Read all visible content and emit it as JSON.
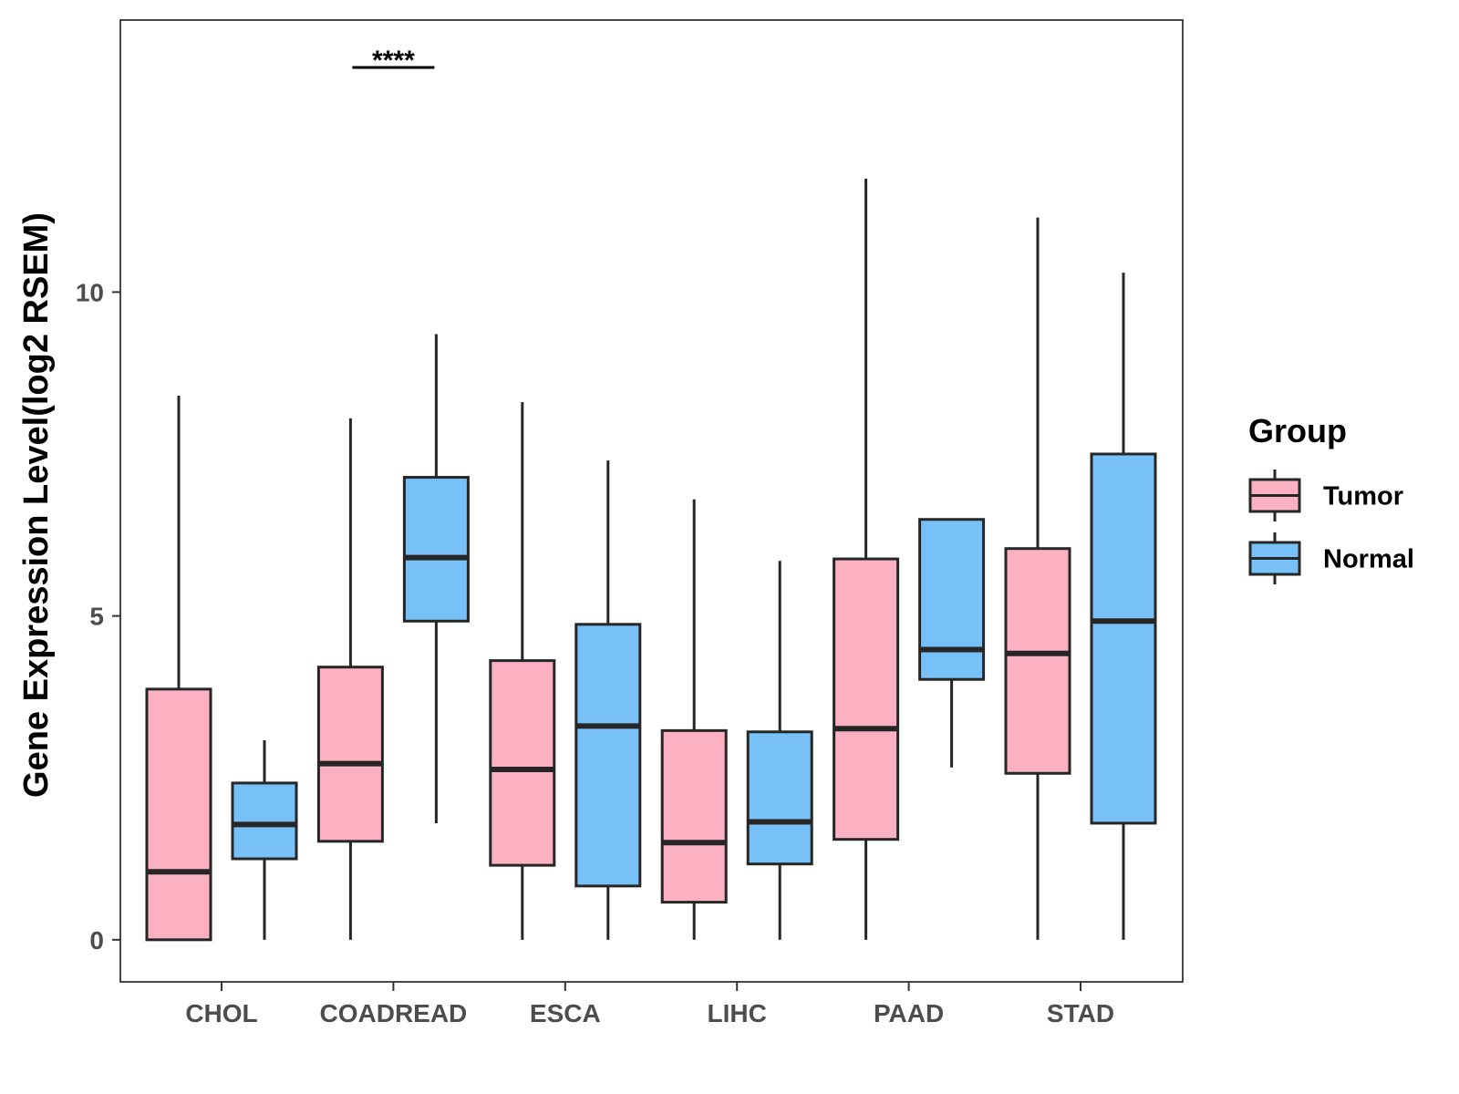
{
  "chart_data": {
    "type": "boxplot",
    "title": "",
    "xlabel": "",
    "ylabel": "Gene Expression Level(log2 RSEM)",
    "ylim": [
      -0.65,
      14.2
    ],
    "yticks": [
      0,
      5,
      10
    ],
    "categories": [
      "CHOL",
      "COADREAD",
      "ESCA",
      "LIHC",
      "PAAD",
      "STAD"
    ],
    "legend": {
      "title": "Group",
      "position": "right"
    },
    "series": [
      {
        "name": "Tumor",
        "color": "#FBB1C2",
        "boxes": [
          {
            "min": 0.0,
            "q1": 0.0,
            "median": 1.05,
            "q3": 3.87,
            "max": 8.4
          },
          {
            "min": 0.0,
            "q1": 1.52,
            "median": 2.72,
            "q3": 4.21,
            "max": 8.05
          },
          {
            "min": 0.0,
            "q1": 1.15,
            "median": 2.63,
            "q3": 4.31,
            "max": 8.3
          },
          {
            "min": 0.0,
            "q1": 0.58,
            "median": 1.5,
            "q3": 3.23,
            "max": 6.8
          },
          {
            "min": 0.0,
            "q1": 1.55,
            "median": 3.26,
            "q3": 5.88,
            "max": 11.75
          },
          {
            "min": 0.0,
            "q1": 2.57,
            "median": 4.42,
            "q3": 6.04,
            "max": 11.15
          }
        ]
      },
      {
        "name": "Normal",
        "color": "#78C1F8",
        "boxes": [
          {
            "min": 0.0,
            "q1": 1.25,
            "median": 1.78,
            "q3": 2.42,
            "max": 3.08
          },
          {
            "min": 1.8,
            "q1": 4.92,
            "median": 5.9,
            "q3": 7.14,
            "max": 9.35
          },
          {
            "min": 0.0,
            "q1": 0.83,
            "median": 3.3,
            "q3": 4.87,
            "max": 7.4
          },
          {
            "min": 0.0,
            "q1": 1.17,
            "median": 1.82,
            "q3": 3.21,
            "max": 5.85
          },
          {
            "min": 2.66,
            "q1": 4.02,
            "median": 4.48,
            "q3": 6.49,
            "max": 6.49
          },
          {
            "min": 0.0,
            "q1": 1.8,
            "median": 4.92,
            "q3": 7.5,
            "max": 10.3
          }
        ]
      }
    ],
    "annotations": [
      {
        "category": "COADREAD",
        "label": "****"
      }
    ]
  }
}
